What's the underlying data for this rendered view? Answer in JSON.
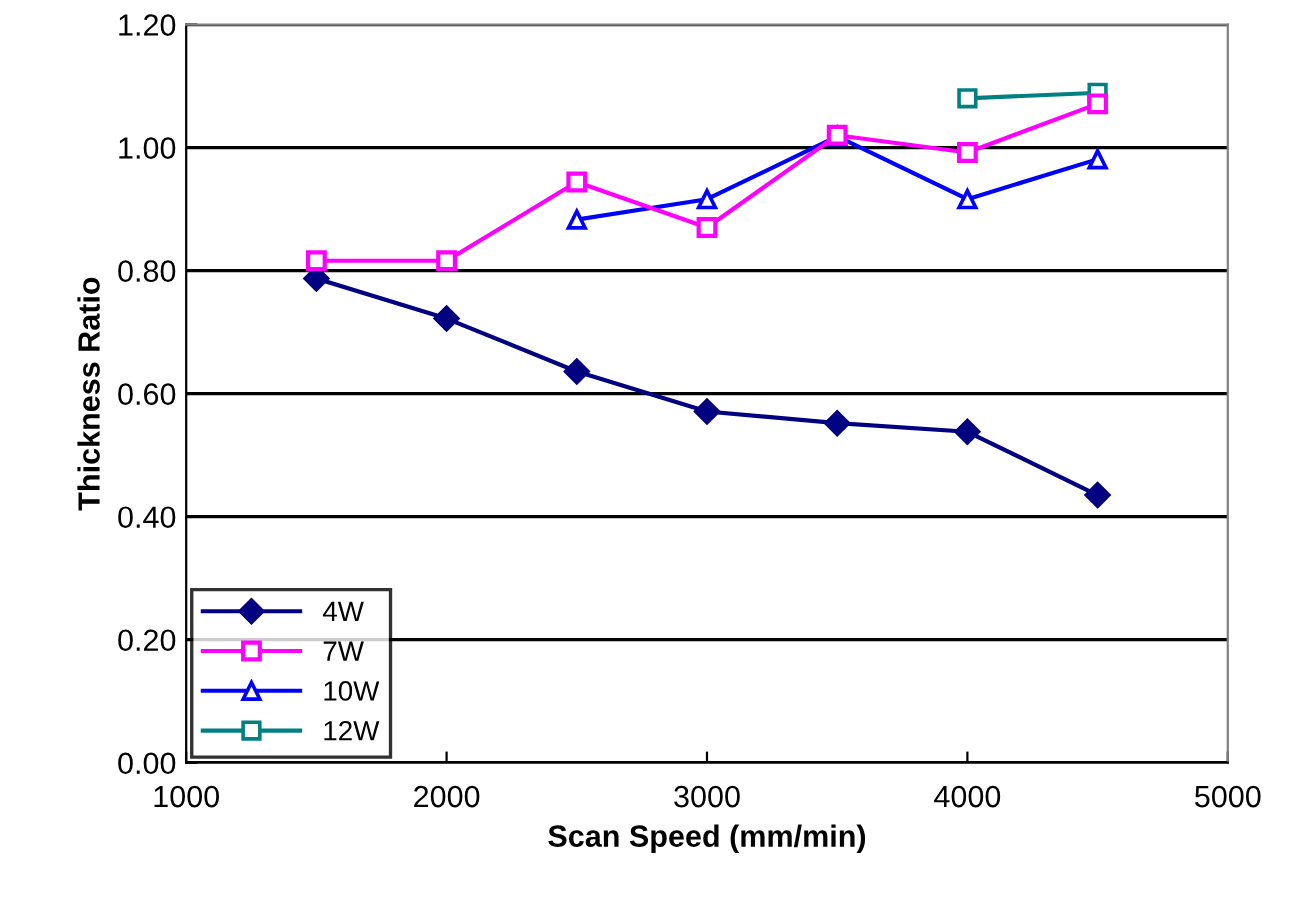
{
  "chart_data": {
    "type": "line",
    "xlabel": "Scan Speed (mm/min)",
    "ylabel": "Thickness Ratio",
    "xlim": [
      1000,
      5000
    ],
    "xticks": [
      1000,
      2000,
      3000,
      4000,
      5000
    ],
    "ylim": [
      0,
      1.2
    ],
    "yticks": [
      {
        "value": 0,
        "label": "0.00"
      },
      {
        "value": 0.2,
        "label": "0.20"
      },
      {
        "value": 0.4,
        "label": "0.40"
      },
      {
        "value": 0.6,
        "label": "0.60"
      },
      {
        "value": 0.8,
        "label": "0.80"
      },
      {
        "value": 1.0,
        "label": "1.00"
      },
      {
        "value": 1.2,
        "label": "1.20"
      }
    ],
    "grid": "y",
    "legend": "bottom left",
    "line_style": "solid",
    "series": [
      {
        "name": "4W",
        "color": "#000080",
        "marker": "diamond",
        "x": [
          1500,
          2000,
          2500,
          3000,
          3500,
          4000,
          4500
        ],
        "values": [
          0.787,
          0.722,
          0.636,
          0.571,
          0.552,
          0.538,
          0.435
        ]
      },
      {
        "name": "7W",
        "color": "#ff00ff",
        "marker": "square",
        "x": [
          1500,
          2000,
          2500,
          3000,
          3500,
          4000,
          4500
        ],
        "values": [
          0.816,
          0.816,
          0.944,
          0.87,
          1.02,
          0.992,
          1.071
        ]
      },
      {
        "name": "10W",
        "color": "#0000ff",
        "marker": "triangle",
        "x": [
          2500,
          3000,
          3500,
          4000,
          4500
        ],
        "values": [
          0.883,
          0.916,
          1.018,
          0.916,
          0.981
        ]
      },
      {
        "name": "12W",
        "color": "#008080",
        "marker": "square",
        "x": [
          4000,
          4500
        ],
        "values": [
          1.08,
          1.089
        ]
      }
    ]
  }
}
